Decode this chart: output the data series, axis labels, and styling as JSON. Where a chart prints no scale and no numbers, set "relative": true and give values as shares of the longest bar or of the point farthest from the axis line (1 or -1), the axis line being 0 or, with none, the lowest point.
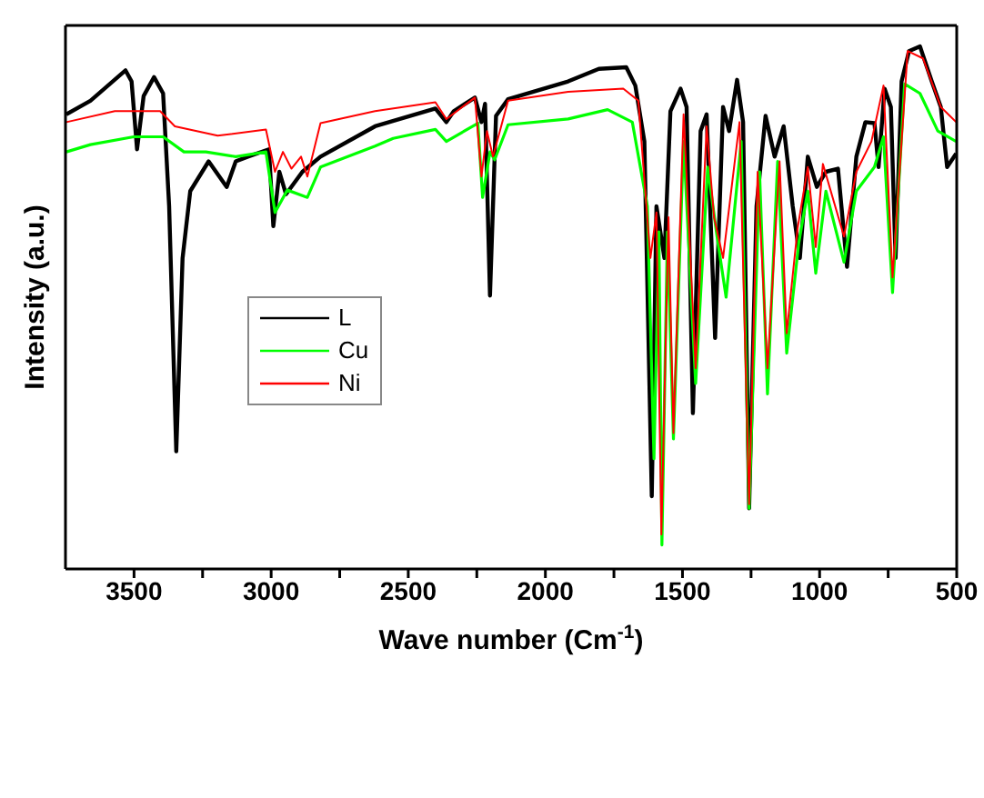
{
  "chart_data": {
    "type": "line",
    "relative": true,
    "xlabel": "Wave number (Cm$^{-1}$)",
    "ylabel": "Intensity (a.u.)",
    "xlim": [
      3750,
      500
    ],
    "xticks": [
      3500,
      {
        "value": 3250,
        "label": null
      },
      3000,
      {
        "value": 2750,
        "label": null
      },
      2500,
      {
        "value": 2250,
        "label": null
      },
      2000,
      {
        "value": 1750,
        "label": null
      },
      1500,
      {
        "value": 1250,
        "label": null
      },
      1000,
      {
        "value": 750,
        "label": null
      },
      500
    ],
    "legend": "left",
    "marker": "none",
    "line_style": "solid",
    "series": [
      {
        "name": "L",
        "color": "#000000",
        "x": [
          3747,
          3659,
          3531,
          3509,
          3489,
          3465,
          3427,
          3394,
          3372,
          3346,
          3323,
          3295,
          3228,
          3162,
          3129,
          3085,
          3008,
          2992,
          2970,
          2946,
          2886,
          2820,
          2621,
          2401,
          2361,
          2334,
          2257,
          2233,
          2220,
          2202,
          2180,
          2136,
          1917,
          1805,
          1705,
          1672,
          1639,
          1612,
          1595,
          1566,
          1544,
          1507,
          1485,
          1462,
          1434,
          1412,
          1381,
          1352,
          1330,
          1301,
          1279,
          1257,
          1230,
          1197,
          1164,
          1131,
          1098,
          1072,
          1043,
          1010,
          977,
          933,
          900,
          866,
          833,
          800,
          785,
          763,
          740,
          723,
          701,
          674,
          634,
          591,
          558,
          535,
          502
        ],
        "values": [
          0.87,
          0.896,
          0.954,
          0.933,
          0.803,
          0.905,
          0.941,
          0.91,
          0.694,
          0.225,
          0.595,
          0.723,
          0.78,
          0.731,
          0.78,
          0.789,
          0.803,
          0.656,
          0.76,
          0.717,
          0.76,
          0.789,
          0.847,
          0.881,
          0.855,
          0.876,
          0.902,
          0.855,
          0.89,
          0.523,
          0.867,
          0.899,
          0.933,
          0.957,
          0.96,
          0.925,
          0.818,
          0.139,
          0.694,
          0.595,
          0.876,
          0.919,
          0.884,
          0.298,
          0.838,
          0.87,
          0.442,
          0.884,
          0.838,
          0.936,
          0.855,
          0.116,
          0.694,
          0.867,
          0.789,
          0.847,
          0.694,
          0.595,
          0.789,
          0.731,
          0.76,
          0.766,
          0.578,
          0.789,
          0.855,
          0.853,
          0.769,
          0.919,
          0.884,
          0.595,
          0.933,
          0.991,
          1.0,
          0.933,
          0.884,
          0.769,
          0.795
        ]
      },
      {
        "name": "Cu",
        "color": "#00ff00",
        "x": [
          3747,
          3659,
          3501,
          3394,
          3318,
          3238,
          3129,
          3019,
          2986,
          2941,
          2868,
          2820,
          2621,
          2555,
          2401,
          2361,
          2246,
          2229,
          2202,
          2185,
          2136,
          1917,
          1773,
          1683,
          1628,
          1604,
          1586,
          1575,
          1555,
          1533,
          1496,
          1452,
          1408,
          1374,
          1341,
          1286,
          1257,
          1219,
          1190,
          1153,
          1120,
          1076,
          1043,
          1014,
          977,
          911,
          866,
          800,
          767,
          734,
          690,
          634,
          569,
          502
        ],
        "values": [
          0.798,
          0.812,
          0.827,
          0.827,
          0.798,
          0.798,
          0.789,
          0.798,
          0.682,
          0.725,
          0.711,
          0.769,
          0.809,
          0.824,
          0.841,
          0.818,
          0.853,
          0.711,
          0.798,
          0.783,
          0.85,
          0.861,
          0.879,
          0.855,
          0.694,
          0.211,
          0.645,
          0.046,
          0.645,
          0.249,
          0.818,
          0.355,
          0.769,
          0.636,
          0.52,
          0.818,
          0.116,
          0.76,
          0.335,
          0.78,
          0.413,
          0.624,
          0.723,
          0.566,
          0.723,
          0.587,
          0.723,
          0.769,
          0.827,
          0.529,
          0.928,
          0.91,
          0.838,
          0.818
        ]
      },
      {
        "name": "Ni",
        "color": "#ff0000",
        "x": [
          3747,
          3570,
          3405,
          3351,
          3195,
          3019,
          2986,
          2957,
          2926,
          2891,
          2868,
          2820,
          2621,
          2401,
          2361,
          2257,
          2233,
          2213,
          2191,
          2136,
          1917,
          1716,
          1661,
          1617,
          1595,
          1577,
          1551,
          1533,
          1496,
          1452,
          1412,
          1385,
          1352,
          1292,
          1257,
          1226,
          1190,
          1146,
          1120,
          1080,
          1043,
          1014,
          988,
          911,
          866,
          811,
          767,
          734,
          679,
          623,
          558,
          502
        ],
        "values": [
          0.855,
          0.876,
          0.876,
          0.847,
          0.829,
          0.841,
          0.76,
          0.798,
          0.766,
          0.789,
          0.751,
          0.853,
          0.876,
          0.893,
          0.861,
          0.902,
          0.751,
          0.838,
          0.789,
          0.896,
          0.913,
          0.919,
          0.896,
          0.595,
          0.682,
          0.066,
          0.673,
          0.26,
          0.87,
          0.384,
          0.847,
          0.673,
          0.595,
          0.855,
          0.124,
          0.76,
          0.384,
          0.78,
          0.451,
          0.653,
          0.769,
          0.616,
          0.775,
          0.636,
          0.76,
          0.818,
          0.925,
          0.558,
          0.991,
          0.977,
          0.884,
          0.855
        ]
      }
    ]
  }
}
